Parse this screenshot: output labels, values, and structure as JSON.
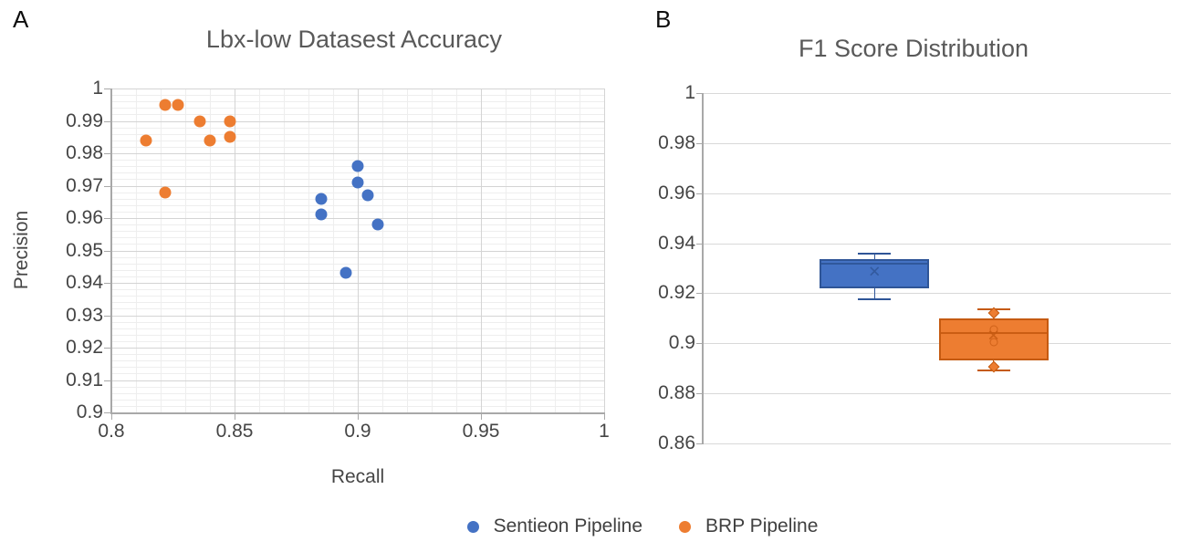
{
  "figure": {
    "background": "#ffffff",
    "text_color_title": "#595959",
    "text_color_ticks": "#454545"
  },
  "legend": {
    "items": [
      {
        "label": "Sentieon Pipeline",
        "color": "#4472C4"
      },
      {
        "label": "BRP Pipeline",
        "color": "#ED7D31"
      }
    ]
  },
  "chart_data": [
    {
      "type": "scatter",
      "panel_label": "A",
      "title": "Lbx-low Datasest Accuracy",
      "xlabel": "Recall",
      "ylabel": "Precision",
      "xlim": [
        0.8,
        1.0
      ],
      "ylim": [
        0.9,
        1.0
      ],
      "x_ticks": {
        "values": [
          0.8,
          0.85,
          0.9,
          0.95,
          1.0
        ],
        "labels": [
          "0.8",
          "0.85",
          "0.9",
          "0.95",
          "1"
        ]
      },
      "y_ticks": {
        "values": [
          1.0,
          0.99,
          0.98,
          0.97,
          0.96,
          0.95,
          0.94,
          0.93,
          0.92,
          0.91,
          0.9
        ],
        "labels": [
          "1",
          "0.99",
          "0.98",
          "0.97",
          "0.96",
          "0.95",
          "0.94",
          "0.93",
          "0.92",
          "0.91",
          "0.9"
        ]
      },
      "x_minor_step": 0.01,
      "y_minor_step": 0.002,
      "grid": true,
      "series": [
        {
          "name": "Sentieon Pipeline",
          "color": "#4472C4",
          "points": [
            [
              0.9,
              0.976
            ],
            [
              0.9,
              0.971
            ],
            [
              0.904,
              0.967
            ],
            [
              0.885,
              0.966
            ],
            [
              0.885,
              0.961
            ],
            [
              0.908,
              0.958
            ],
            [
              0.895,
              0.943
            ]
          ]
        },
        {
          "name": "BRP Pipeline",
          "color": "#ED7D31",
          "points": [
            [
              0.814,
              0.984
            ],
            [
              0.822,
              0.995
            ],
            [
              0.827,
              0.995
            ],
            [
              0.836,
              0.99
            ],
            [
              0.84,
              0.984
            ],
            [
              0.848,
              0.99
            ],
            [
              0.848,
              0.985
            ],
            [
              0.822,
              0.968
            ]
          ]
        }
      ]
    },
    {
      "type": "box",
      "panel_label": "B",
      "title": "F1 Score Distribution",
      "xlabel": "",
      "ylabel": "",
      "ylim": [
        0.86,
        1.0
      ],
      "y_ticks": {
        "values": [
          1.0,
          0.98,
          0.96,
          0.94,
          0.92,
          0.9,
          0.88,
          0.86
        ],
        "labels": [
          "1",
          "0.98",
          "0.96",
          "0.94",
          "0.92",
          "0.9",
          "0.88",
          "0.86"
        ]
      },
      "grid": true,
      "legend_position": "bottom",
      "boxes": [
        {
          "name": "Sentieon Pipeline",
          "fill": "#4472C4",
          "line": "#2F5597",
          "whisker_high": 0.936,
          "q3": 0.9335,
          "median": 0.932,
          "mean": 0.9285,
          "q1": 0.922,
          "whisker_low": 0.9175,
          "inner_points": []
        },
        {
          "name": "BRP Pipeline",
          "fill": "#ED7D31",
          "line": "#C55A11",
          "whisker_high": 0.9135,
          "q3": 0.91,
          "median": 0.904,
          "mean": 0.903,
          "q1": 0.893,
          "whisker_low": 0.889,
          "inner_points": [
            {
              "value": 0.912,
              "marker": "diamond"
            },
            {
              "value": 0.9055,
              "marker": "circle"
            },
            {
              "value": 0.9005,
              "marker": "circle"
            },
            {
              "value": 0.8905,
              "marker": "diamond"
            }
          ]
        }
      ]
    }
  ]
}
